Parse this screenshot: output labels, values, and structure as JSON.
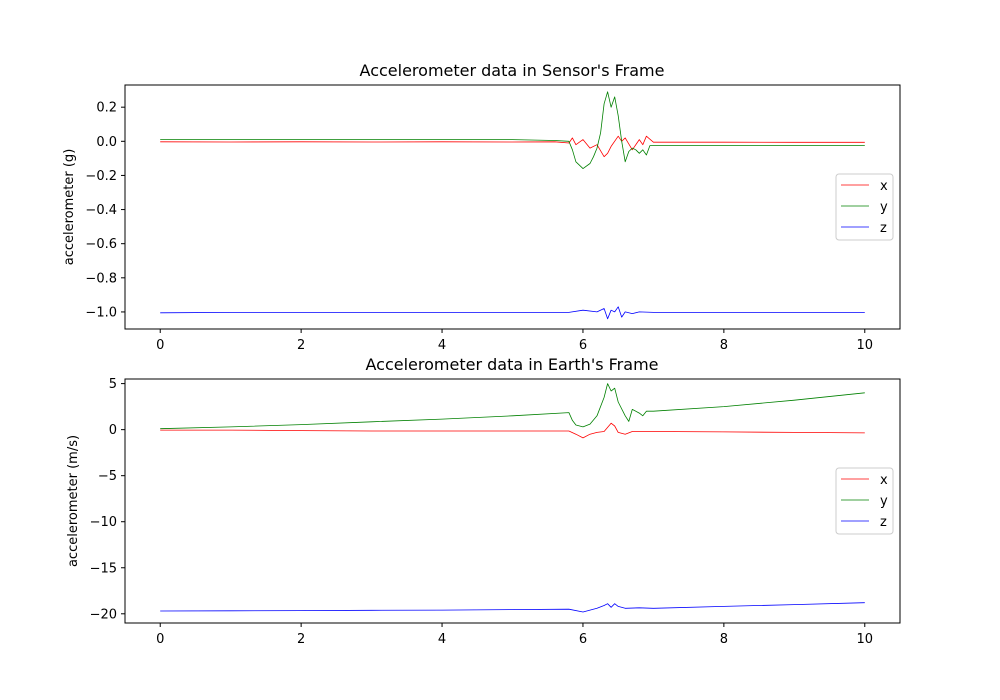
{
  "chart_data": [
    {
      "type": "line",
      "title": "Accelerometer data in Sensor's Frame",
      "xlabel": "",
      "ylabel": "accelerometer (g)",
      "xlim": [
        -0.5,
        10.5
      ],
      "ylim": [
        -1.1,
        0.33
      ],
      "xticks": [
        0,
        2,
        4,
        6,
        8,
        10
      ],
      "xtick_labels": [
        "0",
        "2",
        "4",
        "6",
        "8",
        "10"
      ],
      "yticks": [
        0.2,
        0.0,
        -0.2,
        -0.4,
        -0.6,
        -0.8,
        -1.0
      ],
      "ytick_labels": [
        "0.2",
        "0.0",
        "−0.2",
        "−0.4",
        "−0.6",
        "−0.8",
        "−1.0"
      ],
      "legend": "center-right",
      "grid": false,
      "series": [
        {
          "name": "x",
          "color": "#ff0000",
          "points": [
            [
              0,
              -0.003
            ],
            [
              1,
              -0.004
            ],
            [
              2,
              -0.003
            ],
            [
              3,
              -0.004
            ],
            [
              4,
              -0.003
            ],
            [
              5,
              -0.004
            ],
            [
              5.6,
              -0.003
            ],
            [
              5.8,
              -0.01
            ],
            [
              5.85,
              0.02
            ],
            [
              5.9,
              -0.02
            ],
            [
              6.0,
              0.01
            ],
            [
              6.1,
              -0.04
            ],
            [
              6.2,
              -0.02
            ],
            [
              6.3,
              -0.09
            ],
            [
              6.35,
              -0.07
            ],
            [
              6.4,
              -0.03
            ],
            [
              6.5,
              0.03
            ],
            [
              6.55,
              0.0
            ],
            [
              6.6,
              0.02
            ],
            [
              6.7,
              -0.05
            ],
            [
              6.8,
              0.01
            ],
            [
              6.85,
              -0.02
            ],
            [
              6.9,
              0.03
            ],
            [
              7.0,
              -0.005
            ],
            [
              8,
              -0.005
            ],
            [
              9,
              -0.006
            ],
            [
              10,
              -0.006
            ]
          ]
        },
        {
          "name": "y",
          "color": "#008000",
          "points": [
            [
              0,
              0.01
            ],
            [
              1,
              0.01
            ],
            [
              2,
              0.01
            ],
            [
              3,
              0.01
            ],
            [
              4,
              0.01
            ],
            [
              5,
              0.01
            ],
            [
              5.6,
              0.005
            ],
            [
              5.8,
              0.0
            ],
            [
              5.85,
              -0.05
            ],
            [
              5.9,
              -0.12
            ],
            [
              6.0,
              -0.16
            ],
            [
              6.1,
              -0.13
            ],
            [
              6.15,
              -0.09
            ],
            [
              6.2,
              -0.04
            ],
            [
              6.25,
              0.05
            ],
            [
              6.3,
              0.22
            ],
            [
              6.35,
              0.29
            ],
            [
              6.4,
              0.2
            ],
            [
              6.45,
              0.26
            ],
            [
              6.5,
              0.15
            ],
            [
              6.55,
              0.0
            ],
            [
              6.6,
              -0.12
            ],
            [
              6.65,
              -0.06
            ],
            [
              6.7,
              -0.04
            ],
            [
              6.75,
              -0.05
            ],
            [
              6.8,
              -0.07
            ],
            [
              6.85,
              -0.05
            ],
            [
              6.9,
              -0.08
            ],
            [
              6.95,
              -0.025
            ],
            [
              7,
              -0.025
            ],
            [
              8,
              -0.025
            ],
            [
              9,
              -0.025
            ],
            [
              10,
              -0.025
            ]
          ]
        },
        {
          "name": "z",
          "color": "#0000ff",
          "points": [
            [
              0,
              -1.005
            ],
            [
              1,
              -1.003
            ],
            [
              2,
              -1.003
            ],
            [
              3,
              -1.003
            ],
            [
              4,
              -1.003
            ],
            [
              5,
              -1.003
            ],
            [
              5.8,
              -1.003
            ],
            [
              6.0,
              -0.99
            ],
            [
              6.2,
              -1.0
            ],
            [
              6.3,
              -0.98
            ],
            [
              6.35,
              -1.04
            ],
            [
              6.4,
              -0.99
            ],
            [
              6.45,
              -1.0
            ],
            [
              6.5,
              -0.97
            ],
            [
              6.55,
              -1.03
            ],
            [
              6.6,
              -1.0
            ],
            [
              6.7,
              -1.01
            ],
            [
              6.8,
              -1.0
            ],
            [
              7,
              -1.003
            ],
            [
              8,
              -1.003
            ],
            [
              9,
              -1.003
            ],
            [
              10,
              -1.003
            ]
          ]
        }
      ]
    },
    {
      "type": "line",
      "title": "Accelerometer data in Earth's Frame",
      "xlabel": "",
      "ylabel": "accelerometer (m/s)",
      "xlim": [
        -0.5,
        10.5
      ],
      "ylim": [
        -21.0,
        5.5
      ],
      "xticks": [
        0,
        2,
        4,
        6,
        8,
        10
      ],
      "xtick_labels": [
        "0",
        "2",
        "4",
        "6",
        "8",
        "10"
      ],
      "yticks": [
        5,
        0,
        -5,
        -10,
        -15,
        -20
      ],
      "ytick_labels": [
        "5",
        "0",
        "−5",
        "−10",
        "−15",
        "−20"
      ],
      "legend": "center-right",
      "grid": false,
      "series": [
        {
          "name": "x",
          "color": "#ff0000",
          "points": [
            [
              0,
              -0.05
            ],
            [
              1,
              -0.05
            ],
            [
              2,
              -0.1
            ],
            [
              3,
              -0.15
            ],
            [
              4,
              -0.15
            ],
            [
              5,
              -0.15
            ],
            [
              5.8,
              -0.15
            ],
            [
              5.9,
              -0.5
            ],
            [
              6.0,
              -0.9
            ],
            [
              6.1,
              -0.5
            ],
            [
              6.2,
              -0.3
            ],
            [
              6.3,
              -0.2
            ],
            [
              6.4,
              0.7
            ],
            [
              6.45,
              0.4
            ],
            [
              6.5,
              -0.3
            ],
            [
              6.6,
              -0.5
            ],
            [
              6.7,
              -0.2
            ],
            [
              7,
              -0.2
            ],
            [
              8,
              -0.25
            ],
            [
              9,
              -0.3
            ],
            [
              10,
              -0.35
            ]
          ]
        },
        {
          "name": "y",
          "color": "#008000",
          "points": [
            [
              0,
              0.1
            ],
            [
              1,
              0.3
            ],
            [
              2,
              0.55
            ],
            [
              3,
              0.85
            ],
            [
              4,
              1.15
            ],
            [
              5,
              1.5
            ],
            [
              5.8,
              1.85
            ],
            [
              5.85,
              1.0
            ],
            [
              5.9,
              0.5
            ],
            [
              6.0,
              0.3
            ],
            [
              6.1,
              0.6
            ],
            [
              6.2,
              1.5
            ],
            [
              6.3,
              3.5
            ],
            [
              6.35,
              5.0
            ],
            [
              6.4,
              4.2
            ],
            [
              6.45,
              4.5
            ],
            [
              6.5,
              3.0
            ],
            [
              6.6,
              1.5
            ],
            [
              6.65,
              0.9
            ],
            [
              6.7,
              2.2
            ],
            [
              6.8,
              1.8
            ],
            [
              6.85,
              1.5
            ],
            [
              6.9,
              2.0
            ],
            [
              7,
              2.0
            ],
            [
              8,
              2.5
            ],
            [
              9,
              3.2
            ],
            [
              10,
              4.0
            ]
          ]
        },
        {
          "name": "z",
          "color": "#0000ff",
          "points": [
            [
              0,
              -19.7
            ],
            [
              1,
              -19.68
            ],
            [
              2,
              -19.65
            ],
            [
              3,
              -19.62
            ],
            [
              4,
              -19.6
            ],
            [
              5,
              -19.55
            ],
            [
              5.8,
              -19.5
            ],
            [
              6.0,
              -19.8
            ],
            [
              6.2,
              -19.4
            ],
            [
              6.3,
              -19.1
            ],
            [
              6.35,
              -18.9
            ],
            [
              6.4,
              -19.3
            ],
            [
              6.45,
              -18.9
            ],
            [
              6.5,
              -19.2
            ],
            [
              6.6,
              -19.4
            ],
            [
              6.8,
              -19.35
            ],
            [
              7,
              -19.4
            ],
            [
              8,
              -19.2
            ],
            [
              9,
              -19.0
            ],
            [
              10,
              -18.8
            ]
          ]
        }
      ]
    }
  ]
}
